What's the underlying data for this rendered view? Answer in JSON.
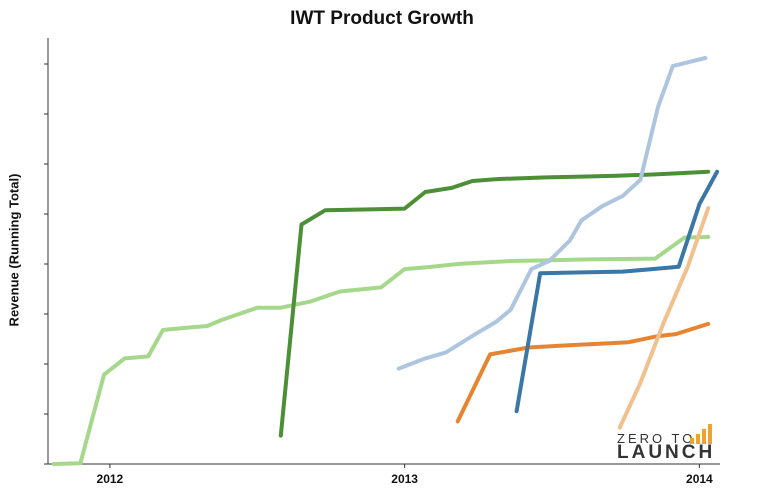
{
  "chart_data": {
    "type": "line",
    "title": "IWT Product Growth",
    "xlabel": "",
    "ylabel": "Revenue (Running Total)",
    "x_ticks": [
      "2012",
      "2013",
      "2014"
    ],
    "xlim": [
      2011.79,
      2014.07
    ],
    "ylim": [
      0,
      100
    ],
    "grid": false,
    "series": [
      {
        "color": "#a6d88b",
        "points": [
          [
            2011.81,
            0
          ],
          [
            2011.9,
            0.2
          ],
          [
            2011.98,
            22
          ],
          [
            2012.05,
            26
          ],
          [
            2012.13,
            26.5
          ],
          [
            2012.18,
            33
          ],
          [
            2012.25,
            33.5
          ],
          [
            2012.33,
            34
          ],
          [
            2012.38,
            35.5
          ],
          [
            2012.5,
            38.5
          ],
          [
            2012.58,
            38.5
          ],
          [
            2012.68,
            40
          ],
          [
            2012.78,
            42.5
          ],
          [
            2012.92,
            43.5
          ],
          [
            2013.0,
            48
          ],
          [
            2013.08,
            48.5
          ],
          [
            2013.19,
            49.3
          ],
          [
            2013.36,
            50
          ],
          [
            2013.5,
            50.2
          ],
          [
            2013.62,
            50.4
          ],
          [
            2013.74,
            50.5
          ],
          [
            2013.85,
            50.6
          ],
          [
            2013.95,
            55.8
          ],
          [
            2014.03,
            55.9
          ]
        ]
      },
      {
        "color": "#4c8f36",
        "points": [
          [
            2012.58,
            7
          ],
          [
            2012.65,
            59
          ],
          [
            2012.73,
            62.5
          ],
          [
            2012.88,
            62.7
          ],
          [
            2013.0,
            62.9
          ],
          [
            2013.07,
            67
          ],
          [
            2013.16,
            68
          ],
          [
            2013.23,
            69.7
          ],
          [
            2013.32,
            70.2
          ],
          [
            2013.48,
            70.6
          ],
          [
            2013.6,
            70.8
          ],
          [
            2013.72,
            71
          ],
          [
            2013.84,
            71.3
          ],
          [
            2013.93,
            71.6
          ],
          [
            2014.03,
            72
          ]
        ]
      },
      {
        "color": "#aec5e0",
        "points": [
          [
            2012.98,
            23.5
          ],
          [
            2013.07,
            26
          ],
          [
            2013.14,
            27.5
          ],
          [
            2013.24,
            32
          ],
          [
            2013.31,
            35
          ],
          [
            2013.36,
            38
          ],
          [
            2013.43,
            48
          ],
          [
            2013.49,
            50
          ],
          [
            2013.56,
            55
          ],
          [
            2013.6,
            60
          ],
          [
            2013.67,
            63.5
          ],
          [
            2013.74,
            66
          ],
          [
            2013.8,
            70
          ],
          [
            2013.86,
            88
          ],
          [
            2013.91,
            98
          ],
          [
            2014.02,
            100
          ]
        ]
      },
      {
        "color": "#e8842f",
        "points": [
          [
            2013.18,
            10.5
          ],
          [
            2013.29,
            27
          ],
          [
            2013.42,
            28.7
          ],
          [
            2013.55,
            29.2
          ],
          [
            2013.66,
            29.6
          ],
          [
            2013.76,
            30
          ],
          [
            2013.86,
            31.5
          ],
          [
            2013.92,
            32
          ],
          [
            2014.03,
            34.5
          ]
        ]
      },
      {
        "color": "#3a77a6",
        "points": [
          [
            2013.38,
            13
          ],
          [
            2013.46,
            47
          ],
          [
            2013.6,
            47.2
          ],
          [
            2013.74,
            47.4
          ],
          [
            2013.84,
            48
          ],
          [
            2013.93,
            48.6
          ],
          [
            2014.0,
            64
          ],
          [
            2014.06,
            72
          ]
        ]
      },
      {
        "color": "#f2c08c",
        "points": [
          [
            2013.73,
            9
          ],
          [
            2013.8,
            20
          ],
          [
            2013.88,
            35
          ],
          [
            2013.96,
            48.5
          ],
          [
            2014.03,
            63
          ]
        ]
      }
    ]
  },
  "logo": {
    "top": "ZERO TO",
    "bottom": "LAUNCH",
    "bar_color": "#f2a12e"
  }
}
